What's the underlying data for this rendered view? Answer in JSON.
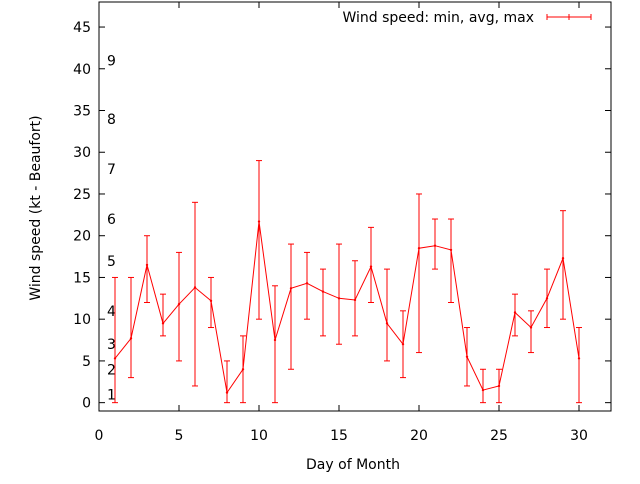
{
  "chart_data": {
    "type": "line",
    "xlabel": "Day of Month",
    "ylabel": "Wind speed (kt - Beaufort)",
    "xlim": [
      0,
      32
    ],
    "ylim": [
      -1,
      48
    ],
    "x_ticks": [
      0,
      5,
      10,
      15,
      20,
      25,
      30
    ],
    "y_ticks": [
      0,
      5,
      10,
      15,
      20,
      25,
      30,
      35,
      40,
      45
    ],
    "grid": false,
    "legend_position": "top-right",
    "beaufort_scale": [
      {
        "label": "1",
        "kt": 1
      },
      {
        "label": "2",
        "kt": 4
      },
      {
        "label": "3",
        "kt": 7
      },
      {
        "label": "4",
        "kt": 11
      },
      {
        "label": "5",
        "kt": 17
      },
      {
        "label": "6",
        "kt": 22
      },
      {
        "label": "7",
        "kt": 28
      },
      {
        "label": "8",
        "kt": 34
      },
      {
        "label": "9",
        "kt": 41
      }
    ],
    "series": [
      {
        "name": "Wind speed: min, avg, max",
        "color": "#ff0000",
        "x": [
          1,
          2,
          3,
          4,
          5,
          6,
          7,
          8,
          9,
          10,
          11,
          12,
          13,
          14,
          15,
          16,
          17,
          18,
          19,
          20,
          21,
          22,
          23,
          24,
          25,
          26,
          27,
          28,
          29,
          30
        ],
        "avg": [
          5.3,
          7.7,
          16.5,
          9.5,
          11.8,
          13.8,
          12.2,
          1.2,
          4.0,
          21.7,
          7.5,
          13.7,
          14.3,
          13.3,
          12.5,
          12.3,
          16.3,
          9.5,
          7.0,
          18.5,
          18.8,
          18.3,
          5.5,
          1.5,
          2.0,
          10.8,
          9.0,
          12.5,
          17.3,
          5.3
        ],
        "min": [
          0,
          3,
          12,
          8,
          5,
          2,
          9,
          0,
          0,
          10,
          0,
          4,
          10,
          8,
          7,
          8,
          12,
          5,
          3,
          6,
          16,
          12,
          2,
          0,
          0,
          8,
          6,
          9,
          10,
          0
        ],
        "max": [
          15,
          15,
          20,
          13,
          18,
          24,
          15,
          5,
          8,
          29,
          14,
          19,
          18,
          16,
          19,
          17,
          21,
          16,
          11,
          25,
          22,
          22,
          9,
          4,
          4,
          13,
          11,
          16,
          23,
          9
        ]
      }
    ]
  }
}
